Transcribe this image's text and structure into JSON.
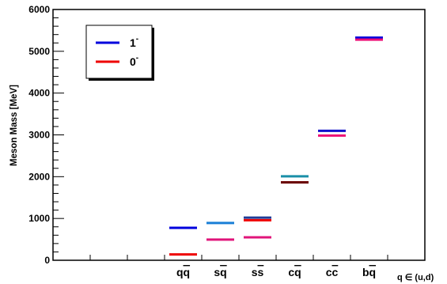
{
  "chart_data": {
    "type": "bar",
    "title": "",
    "ylabel": "Meson Mass [MeV]",
    "xlabel": "q ∈ (u,d)",
    "ylim": [
      0,
      6000
    ],
    "yticks": [
      0,
      1000,
      2000,
      3000,
      4000,
      5000,
      6000
    ],
    "y_minor_step": 200,
    "categories": [
      "q̅q",
      "s̅q",
      "s̅s",
      "c̅q",
      "c̅c",
      "b̅q"
    ],
    "category_labels": [
      {
        "base": "q",
        "barred": "q"
      },
      {
        "base": "s",
        "barred": "q"
      },
      {
        "base": "s",
        "barred": "s"
      },
      {
        "base": "c",
        "barred": "q"
      },
      {
        "base": "c",
        "barred": "c"
      },
      {
        "base": "b",
        "barred": "q"
      }
    ],
    "category_slots": [
      3,
      4,
      5,
      6,
      7,
      8
    ],
    "x_slot_count": 10,
    "legend": {
      "placement": "top-left",
      "entries": [
        {
          "name": "1⁻",
          "base": "1",
          "sup": "-",
          "color": "#0000dd"
        },
        {
          "name": "0⁻",
          "base": "0",
          "sup": "-",
          "color": "#ee0000"
        }
      ]
    },
    "levels": [
      {
        "category": 0,
        "value": 775,
        "color": "#0000dd"
      },
      {
        "category": 0,
        "value": 140,
        "color": "#ee0000"
      },
      {
        "category": 1,
        "value": 892,
        "color": "#1a7fd6"
      },
      {
        "category": 1,
        "value": 494,
        "color": "#e0157a"
      },
      {
        "category": 2,
        "value": 1019,
        "color": "#1f3d99"
      },
      {
        "category": 2,
        "value": 958,
        "color": "#ee0000"
      },
      {
        "category": 2,
        "value": 548,
        "color": "#e0157a"
      },
      {
        "category": 3,
        "value": 2008,
        "color": "#1a8fa8"
      },
      {
        "category": 3,
        "value": 1865,
        "color": "#6b0000"
      },
      {
        "category": 4,
        "value": 3097,
        "color": "#1010cc"
      },
      {
        "category": 4,
        "value": 2984,
        "color": "#ee1177"
      },
      {
        "category": 5,
        "value": 5325,
        "color": "#0000dd"
      },
      {
        "category": 5,
        "value": 5279,
        "color": "#ee1177"
      }
    ],
    "grid": false
  }
}
